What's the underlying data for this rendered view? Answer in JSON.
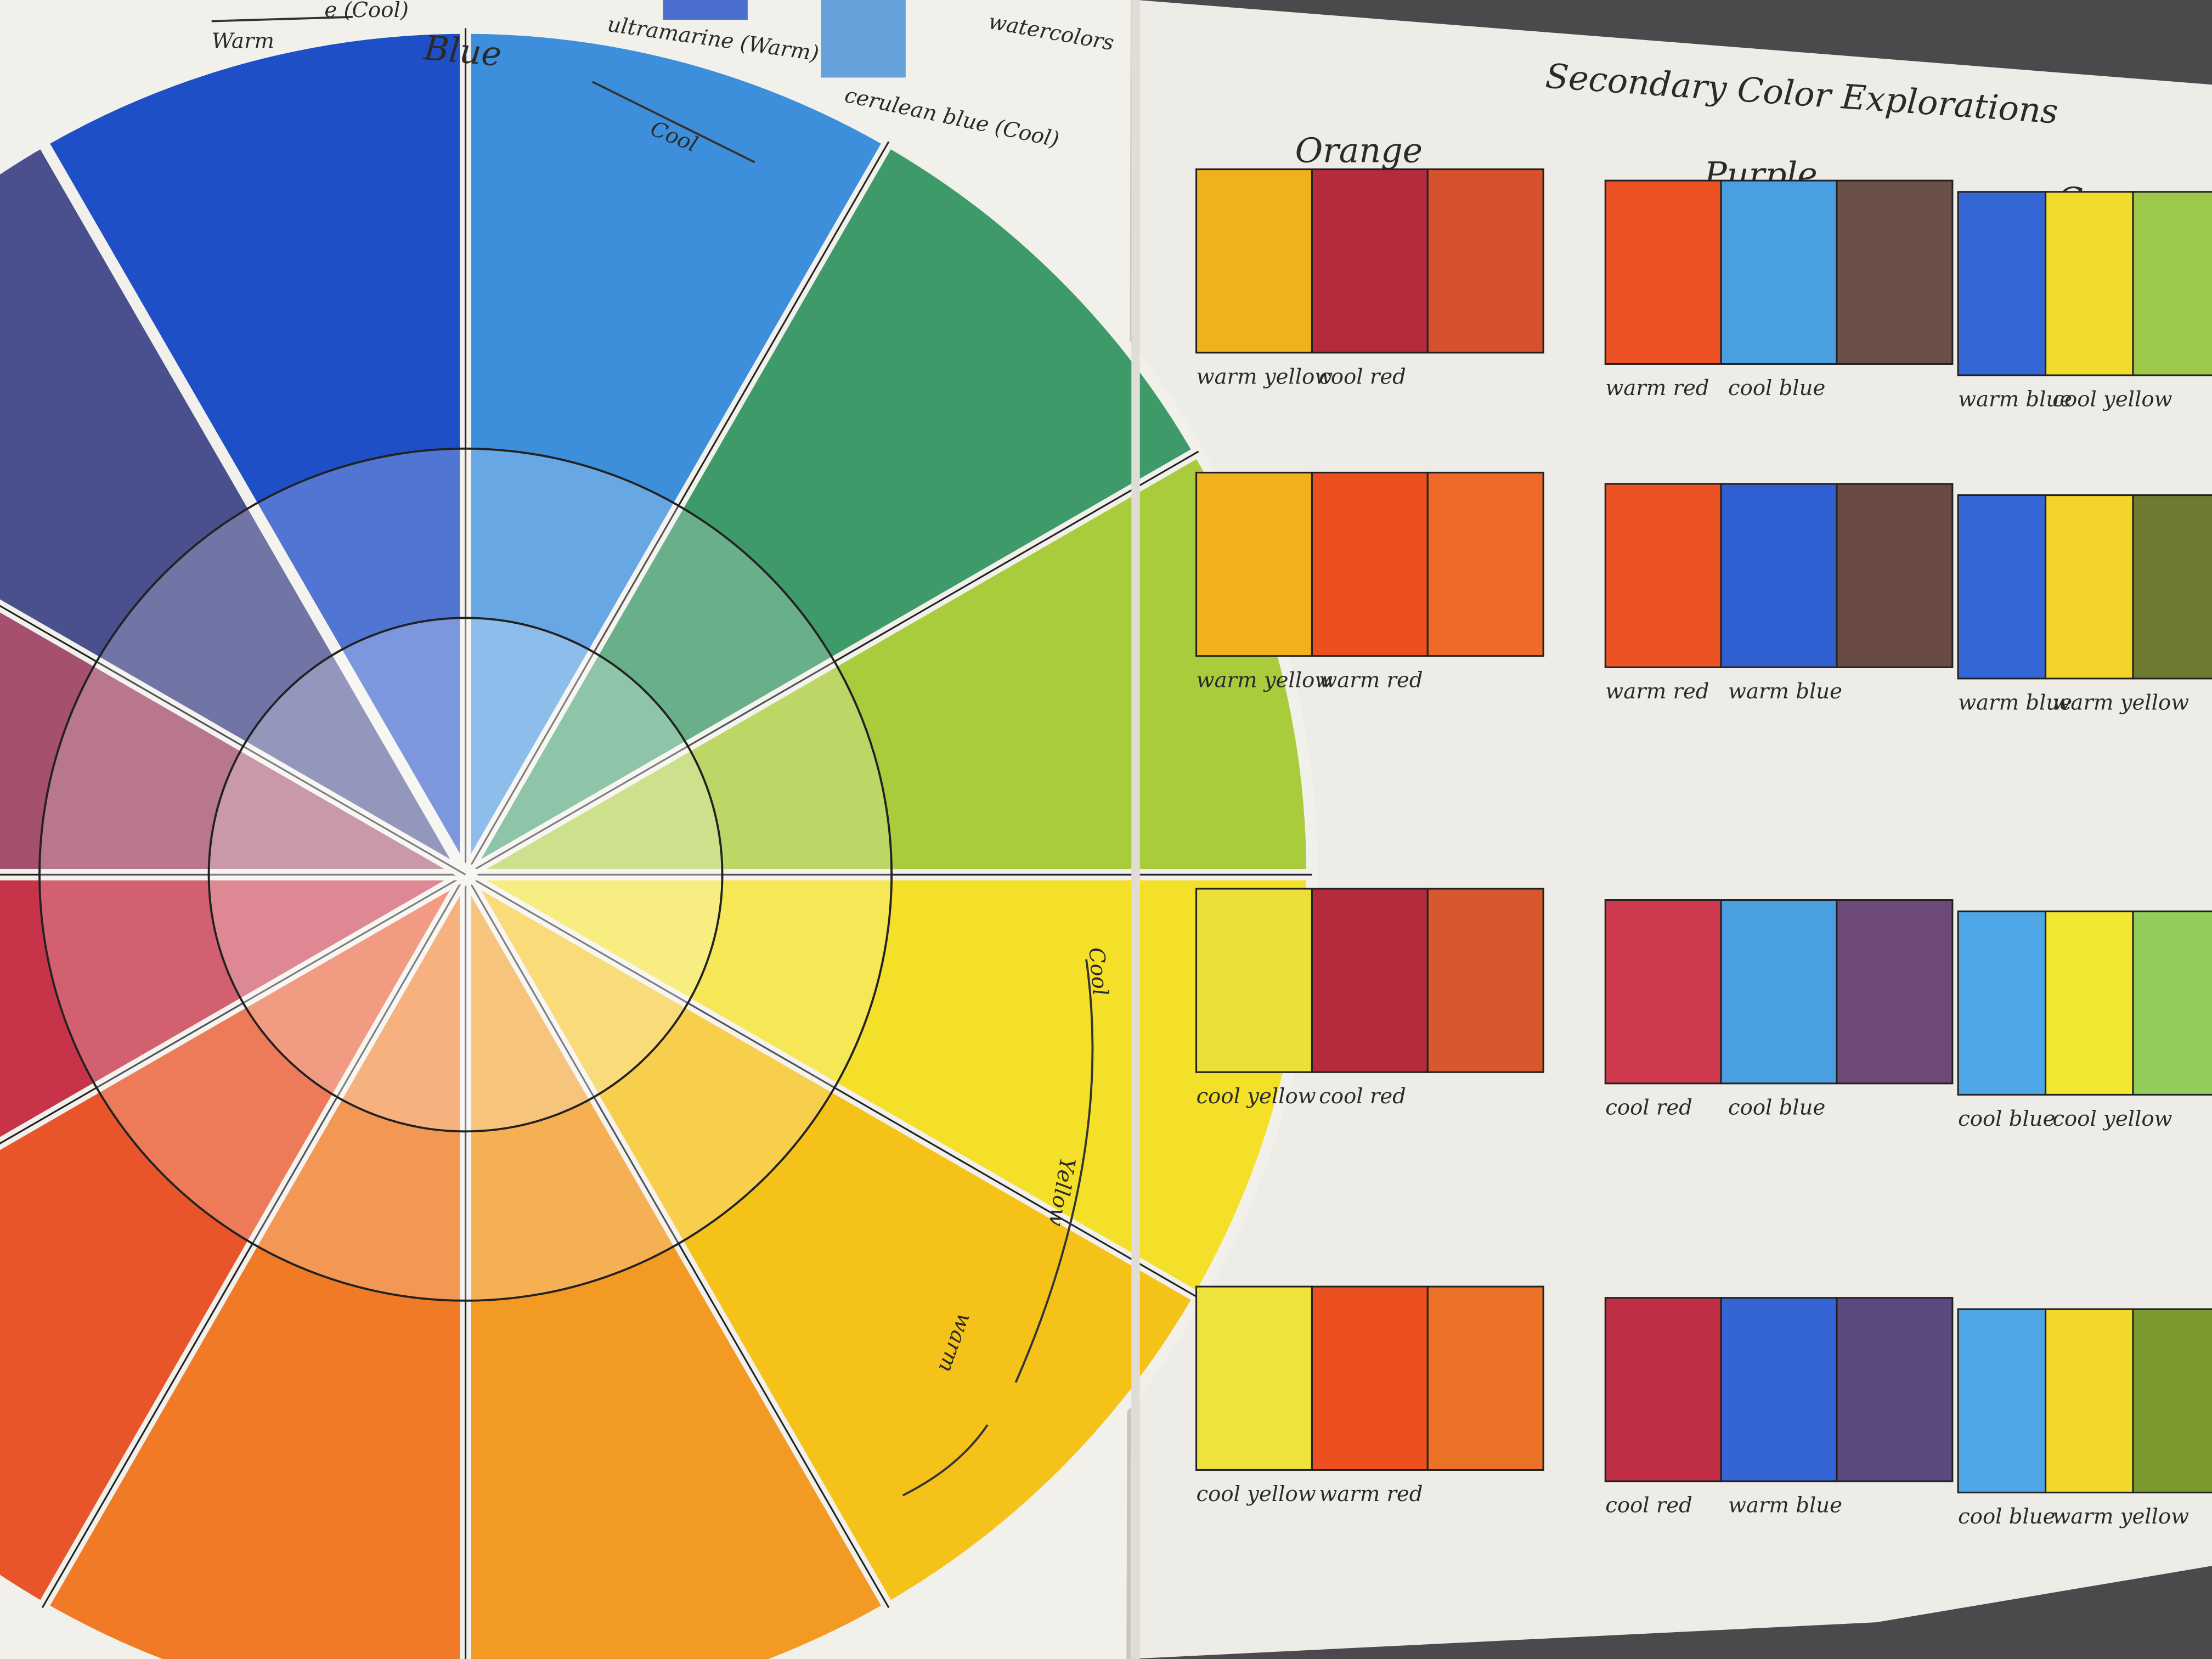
{
  "left_page": {
    "top_fragment": "e (Cool)",
    "warm_header": "Warm",
    "blue_header": "Blue",
    "cool_arc": "Cool",
    "ultramarine": "ultramarine (Warm)",
    "cerulean": "cerulean blue (Cool)",
    "watercolors": "watercolors",
    "yellow_cool": "Cool",
    "yellow_header": "Yellow",
    "yellow_warm": "warm"
  },
  "right_page": {
    "title": "Secondary Color Explorations",
    "columns": [
      "Orange",
      "Purple",
      "Green"
    ],
    "rows": [
      {
        "groups": [
          {
            "labels": [
              "warm yellow",
              "cool red"
            ]
          },
          {
            "labels": [
              "warm red",
              "cool blue"
            ]
          },
          {
            "labels": [
              "warm blue",
              "cool yellow"
            ]
          }
        ]
      },
      {
        "groups": [
          {
            "labels": [
              "warm yellow",
              "warm red"
            ]
          },
          {
            "labels": [
              "warm red",
              "warm blue"
            ]
          },
          {
            "labels": [
              "warm blue",
              "warm yellow"
            ]
          }
        ]
      },
      {
        "groups": [
          {
            "labels": [
              "cool yellow",
              "cool red"
            ]
          },
          {
            "labels": [
              "cool red",
              "cool blue"
            ]
          },
          {
            "labels": [
              "cool blue",
              "cool yellow"
            ]
          }
        ]
      },
      {
        "groups": [
          {
            "labels": [
              "cool yellow",
              "warm red"
            ]
          },
          {
            "labels": [
              "cool red",
              "warm blue"
            ]
          },
          {
            "labels": [
              "cool blue",
              "warm yellow"
            ]
          }
        ]
      }
    ]
  }
}
